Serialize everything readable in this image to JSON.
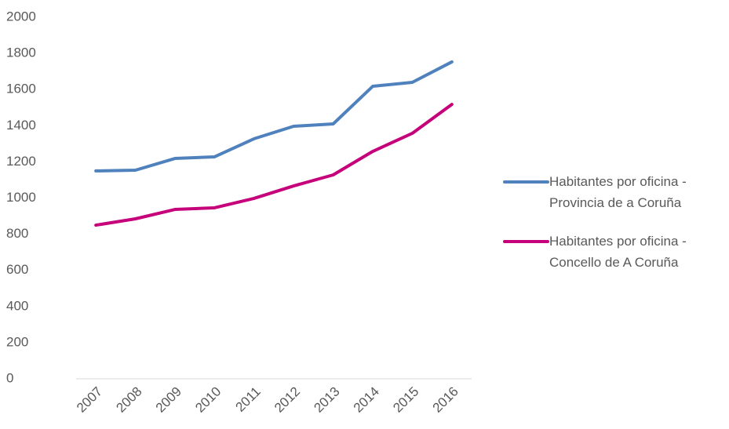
{
  "chart_data": {
    "type": "line",
    "categories": [
      "2007",
      "2008",
      "2009",
      "2010",
      "2011",
      "2012",
      "2013",
      "2014",
      "2015",
      "2016"
    ],
    "series": [
      {
        "name": "Habitantes por oficina - Provincia de a Coruña",
        "color": "#4f81bd",
        "values": [
          1150,
          1154,
          1219,
          1228,
          1328,
          1397,
          1410,
          1618,
          1640,
          1753
        ]
      },
      {
        "name": "Habitantes por oficina - Concello de A Coruña",
        "color": "#c5007a",
        "values": [
          850,
          885,
          937,
          946,
          998,
          1067,
          1128,
          1258,
          1358,
          1518
        ]
      }
    ],
    "ylim": [
      0,
      2000
    ],
    "yticks": [
      0,
      200,
      400,
      600,
      800,
      1000,
      1200,
      1400,
      1600,
      1800,
      2000
    ],
    "grid": false,
    "legend": "right"
  }
}
